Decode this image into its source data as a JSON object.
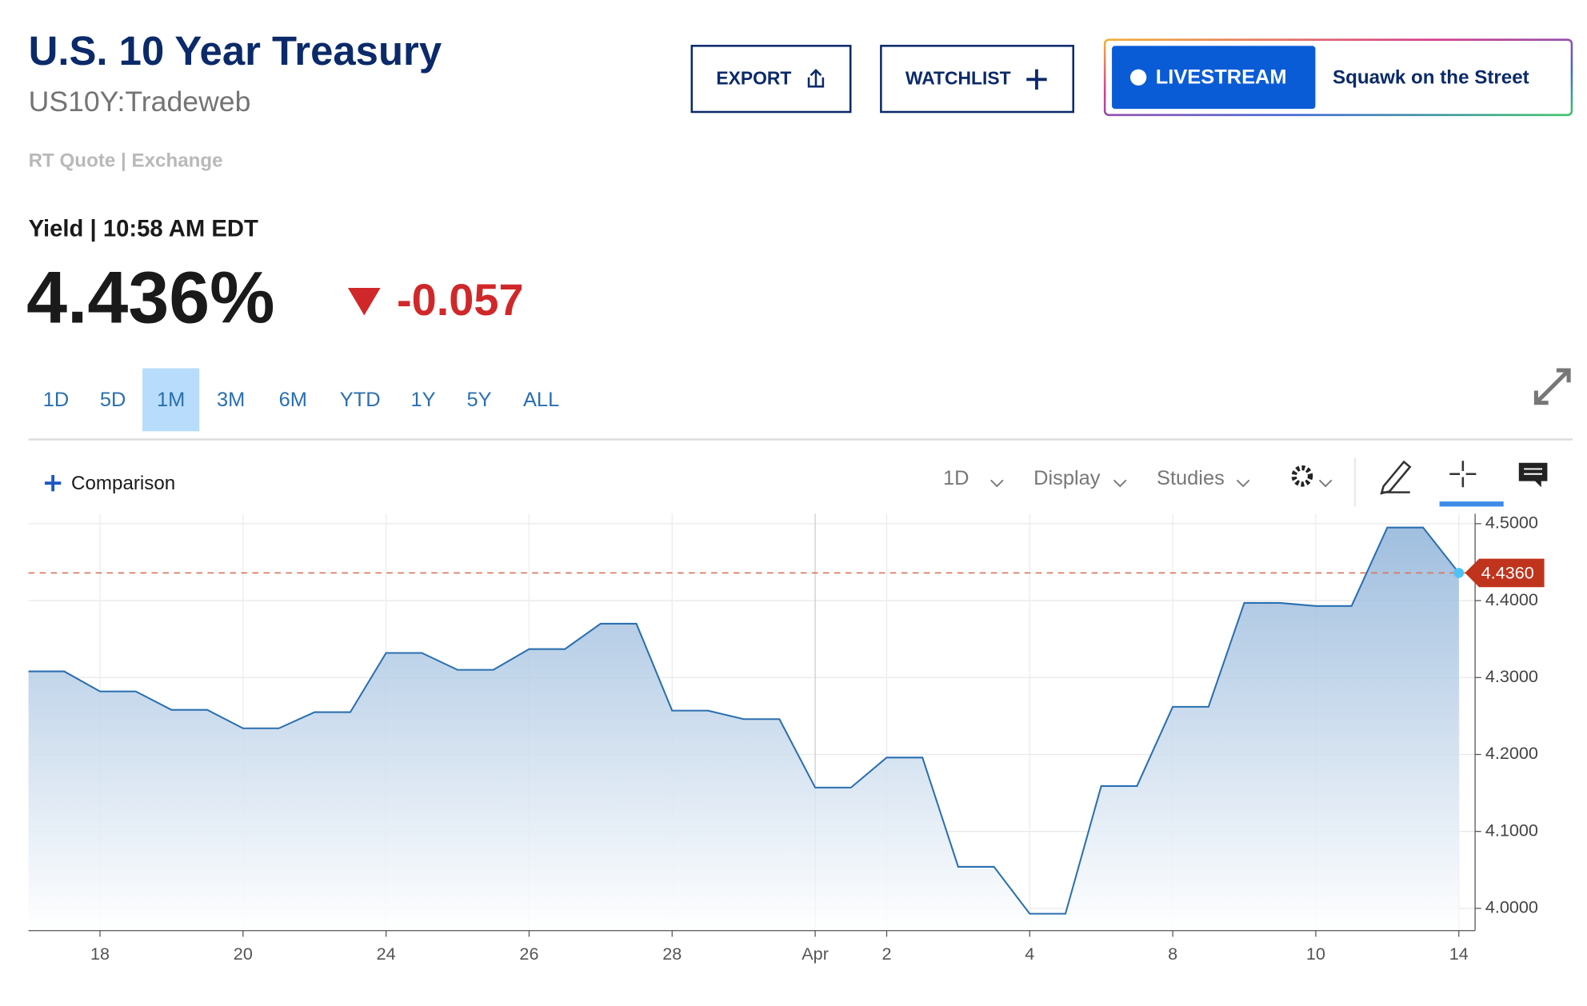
{
  "header": {
    "title": "U.S. 10 Year Treasury",
    "symbol": "US10Y:Tradeweb",
    "quote_source": "RT Quote | Exchange",
    "yield_label": "Yield | 10:58 AM EDT",
    "price": "4.436%",
    "change": "-0.057"
  },
  "buttons": {
    "export": "EXPORT",
    "watchlist": "WATCHLIST",
    "livestream": "LIVESTREAM",
    "show": "Squawk on the Street"
  },
  "tabs": [
    "1D",
    "5D",
    "1M",
    "3M",
    "6M",
    "YTD",
    "1Y",
    "5Y",
    "ALL"
  ],
  "active_tab": "1M",
  "toolbar": {
    "comparison": "Comparison",
    "interval": "1D",
    "display": "Display",
    "studies": "Studies"
  },
  "chart_data": {
    "type": "area",
    "categories": [
      null,
      null,
      "18",
      null,
      null,
      null,
      "20",
      null,
      null,
      null,
      "24",
      null,
      null,
      null,
      "26",
      null,
      null,
      null,
      "28",
      null,
      null,
      null,
      "Apr",
      null,
      "2",
      null,
      null,
      null,
      "4",
      null,
      null,
      null,
      "8",
      null,
      null,
      null,
      "10",
      null,
      null,
      null,
      "14"
    ],
    "series": [
      {
        "name": "US10Y",
        "color": "#2a6fb0",
        "values": [
          4.308,
          4.308,
          4.282,
          4.282,
          4.258,
          4.258,
          4.234,
          4.234,
          4.255,
          4.255,
          4.332,
          4.332,
          4.31,
          4.31,
          4.337,
          4.337,
          4.37,
          4.37,
          4.257,
          4.257,
          4.246,
          4.246,
          4.157,
          4.157,
          4.196,
          4.196,
          4.054,
          4.054,
          3.993,
          3.993,
          4.159,
          4.159,
          4.262,
          4.262,
          4.397,
          4.397,
          4.393,
          4.393,
          4.495,
          4.495,
          4.436
        ]
      }
    ],
    "ylim": [
      3.971,
      4.513
    ],
    "yticks": [
      {
        "value": 4.0,
        "label": "4.0000"
      },
      {
        "value": 4.1,
        "label": "4.1000"
      },
      {
        "value": 4.2,
        "label": "4.2000"
      },
      {
        "value": 4.3,
        "label": "4.3000"
      },
      {
        "value": 4.4,
        "label": "4.4000"
      },
      {
        "value": 4.5,
        "label": "4.5000"
      }
    ],
    "last_price": {
      "value": 4.436,
      "label": "4.4360",
      "color": "#c0341d"
    },
    "grid": true
  }
}
